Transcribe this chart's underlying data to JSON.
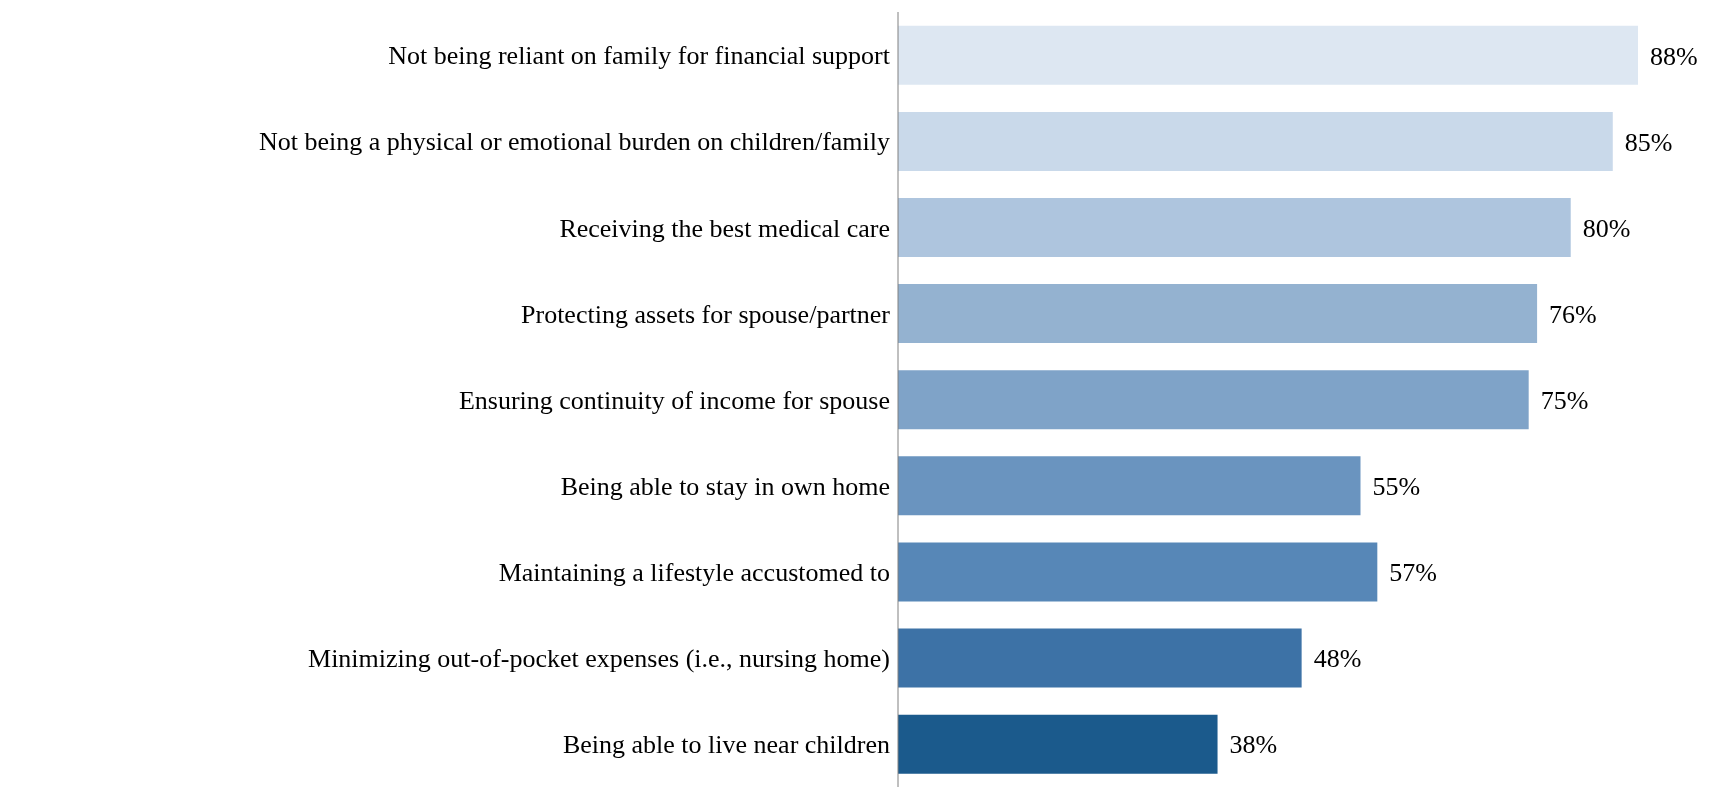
{
  "chart_data": {
    "type": "bar",
    "orientation": "horizontal",
    "categories": [
      "Not being reliant on family for financial support",
      "Not being a physical or emotional burden on children/family",
      "Receiving the best medical care",
      "Protecting assets for spouse/partner",
      "Ensuring continuity of income for spouse",
      "Being able to stay in own home",
      "Maintaining a lifestyle accustomed to",
      "Minimizing out-of-pocket expenses (i.e., nursing home)",
      "Being able to live near children"
    ],
    "values": [
      88,
      85,
      80,
      76,
      75,
      55,
      57,
      48,
      38
    ],
    "colors": [
      "#dde7f2",
      "#c9d9ea",
      "#aec5de",
      "#94b2d0",
      "#7fa3c8",
      "#6a94bf",
      "#5787b7",
      "#3d72a6",
      "#1b5a8c"
    ],
    "value_labels": [
      "88%",
      "85%",
      "80%",
      "76%",
      "75%",
      "55%",
      "57%",
      "48%",
      "38%"
    ],
    "grid": false,
    "legend": false
  }
}
